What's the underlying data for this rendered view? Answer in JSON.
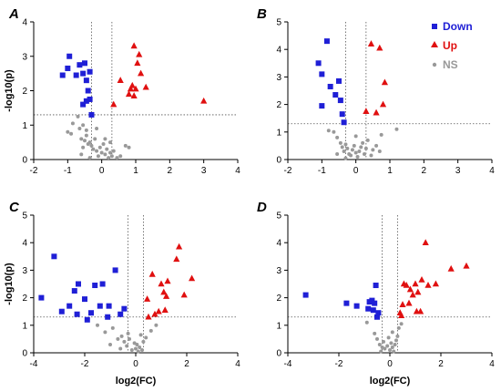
{
  "legend": [
    {
      "key": "down",
      "label": "Down",
      "color": "#1f1fd6",
      "shape": "square"
    },
    {
      "key": "up",
      "label": "Up",
      "color": "#e01010",
      "shape": "triangle"
    },
    {
      "key": "ns",
      "label": "NS",
      "color": "#999999",
      "shape": "circle"
    }
  ],
  "chart_data": [
    {
      "type": "scatter",
      "title": "A",
      "xlabel": "",
      "ylabel": "-log10(p)",
      "xlim": [
        -2,
        4
      ],
      "ylim": [
        0,
        4
      ],
      "xticks": [
        -2,
        -1,
        0,
        1,
        2,
        3,
        4
      ],
      "yticks": [
        0,
        1,
        2,
        3,
        4
      ],
      "vlines": [
        -0.3,
        0.3
      ],
      "hline": 1.3,
      "series": [
        {
          "key": "down",
          "points": [
            [
              -1.15,
              2.45
            ],
            [
              -0.95,
              3.0
            ],
            [
              -1.0,
              2.65
            ],
            [
              -0.75,
              2.45
            ],
            [
              -0.65,
              2.75
            ],
            [
              -0.55,
              2.5
            ],
            [
              -0.5,
              2.8
            ],
            [
              -0.45,
              2.3
            ],
            [
              -0.4,
              2.0
            ],
            [
              -0.35,
              2.55
            ],
            [
              -0.45,
              1.7
            ],
            [
              -0.35,
              1.75
            ],
            [
              -0.55,
              1.6
            ],
            [
              -0.3,
              1.3
            ]
          ]
        },
        {
          "key": "up",
          "points": [
            [
              0.35,
              1.6
            ],
            [
              0.55,
              2.3
            ],
            [
              0.8,
              1.9
            ],
            [
              0.85,
              2.05
            ],
            [
              0.9,
              2.15
            ],
            [
              0.95,
              1.85
            ],
            [
              1.0,
              2.05
            ],
            [
              0.95,
              3.3
            ],
            [
              1.05,
              2.8
            ],
            [
              1.15,
              2.5
            ],
            [
              1.3,
              2.1
            ],
            [
              1.1,
              3.05
            ],
            [
              3.0,
              1.7
            ]
          ]
        },
        {
          "key": "ns",
          "points": [
            [
              -1.0,
              0.8
            ],
            [
              -0.9,
              0.75
            ],
            [
              -0.85,
              1.05
            ],
            [
              -0.7,
              1.25
            ],
            [
              -0.65,
              0.9
            ],
            [
              -0.6,
              0.6
            ],
            [
              -0.55,
              0.35
            ],
            [
              -0.5,
              0.55
            ],
            [
              -0.45,
              0.7
            ],
            [
              -0.4,
              0.45
            ],
            [
              -0.35,
              0.5
            ],
            [
              -0.3,
              0.4
            ],
            [
              -0.25,
              0.3
            ],
            [
              -0.2,
              0.6
            ],
            [
              -0.15,
              0.25
            ],
            [
              -0.1,
              0.1
            ],
            [
              -0.05,
              0.35
            ],
            [
              0.0,
              0.2
            ],
            [
              0.05,
              0.45
            ],
            [
              0.1,
              0.15
            ],
            [
              0.15,
              0.3
            ],
            [
              0.2,
              0.05
            ],
            [
              0.25,
              0.2
            ],
            [
              0.3,
              0.1
            ],
            [
              0.35,
              0.25
            ],
            [
              0.45,
              0.05
            ],
            [
              0.55,
              0.1
            ],
            [
              0.7,
              0.4
            ],
            [
              0.8,
              0.35
            ],
            [
              -0.45,
              0.85
            ],
            [
              -0.55,
              1.0
            ],
            [
              -0.6,
              0.15
            ],
            [
              -0.35,
              0.05
            ],
            [
              -0.15,
              0.9
            ],
            [
              0.1,
              0.6
            ],
            [
              0.25,
              0.5
            ]
          ]
        }
      ]
    },
    {
      "type": "scatter",
      "title": "B",
      "xlabel": "",
      "ylabel": "",
      "xlim": [
        -2,
        4
      ],
      "ylim": [
        0,
        5
      ],
      "xticks": [
        -2,
        -1,
        0,
        1,
        2,
        3,
        4
      ],
      "yticks": [
        0,
        1,
        2,
        3,
        4,
        5
      ],
      "vlines": [
        -0.3,
        0.3
      ],
      "hline": 1.3,
      "series": [
        {
          "key": "down",
          "points": [
            [
              -1.1,
              3.5
            ],
            [
              -1.0,
              3.1
            ],
            [
              -0.85,
              4.3
            ],
            [
              -0.75,
              2.65
            ],
            [
              -0.6,
              2.35
            ],
            [
              -0.5,
              2.85
            ],
            [
              -0.45,
              2.15
            ],
            [
              -0.4,
              1.65
            ],
            [
              -0.35,
              1.35
            ],
            [
              -1.0,
              1.95
            ]
          ]
        },
        {
          "key": "up",
          "points": [
            [
              0.3,
              1.75
            ],
            [
              0.45,
              4.2
            ],
            [
              0.7,
              4.05
            ],
            [
              0.85,
              2.8
            ],
            [
              0.8,
              2.0
            ],
            [
              0.6,
              1.7
            ]
          ]
        },
        {
          "key": "ns",
          "points": [
            [
              -0.8,
              1.05
            ],
            [
              -0.65,
              1.0
            ],
            [
              -0.55,
              0.8
            ],
            [
              -0.45,
              0.6
            ],
            [
              -0.4,
              0.45
            ],
            [
              -0.35,
              0.3
            ],
            [
              -0.3,
              0.55
            ],
            [
              -0.25,
              0.4
            ],
            [
              -0.2,
              0.2
            ],
            [
              -0.15,
              0.15
            ],
            [
              -0.1,
              0.35
            ],
            [
              -0.05,
              0.5
            ],
            [
              0.0,
              0.25
            ],
            [
              0.05,
              0.1
            ],
            [
              0.1,
              0.3
            ],
            [
              0.15,
              0.45
            ],
            [
              0.2,
              0.6
            ],
            [
              0.25,
              0.2
            ],
            [
              0.3,
              0.4
            ],
            [
              0.35,
              0.7
            ],
            [
              0.5,
              0.35
            ],
            [
              0.6,
              0.5
            ],
            [
              0.7,
              0.3
            ],
            [
              0.75,
              0.9
            ],
            [
              1.2,
              1.1
            ],
            [
              -0.55,
              0.2
            ],
            [
              -0.3,
              0.05
            ],
            [
              0.0,
              0.85
            ],
            [
              0.45,
              0.15
            ]
          ]
        }
      ]
    },
    {
      "type": "scatter",
      "title": "C",
      "xlabel": "log2(FC)",
      "ylabel": "-log10(p)",
      "xlim": [
        -4,
        4
      ],
      "ylim": [
        0,
        5
      ],
      "xticks": [
        -4,
        -2,
        0,
        2,
        4
      ],
      "yticks": [
        0,
        1,
        2,
        3,
        4,
        5
      ],
      "vlines": [
        -0.3,
        0.3
      ],
      "hline": 1.3,
      "series": [
        {
          "key": "down",
          "points": [
            [
              -3.7,
              2.0
            ],
            [
              -3.2,
              3.5
            ],
            [
              -2.9,
              1.5
            ],
            [
              -2.6,
              1.7
            ],
            [
              -2.4,
              2.25
            ],
            [
              -2.3,
              1.4
            ],
            [
              -2.25,
              2.5
            ],
            [
              -2.0,
              1.95
            ],
            [
              -1.75,
              1.45
            ],
            [
              -1.6,
              2.45
            ],
            [
              -1.4,
              1.7
            ],
            [
              -1.3,
              2.5
            ],
            [
              -1.05,
              1.7
            ],
            [
              -0.8,
              3.0
            ],
            [
              -0.6,
              1.4
            ],
            [
              -0.45,
              1.6
            ],
            [
              -1.9,
              1.2
            ],
            [
              -1.1,
              1.3
            ]
          ]
        },
        {
          "key": "up",
          "points": [
            [
              0.5,
              1.3
            ],
            [
              0.65,
              2.85
            ],
            [
              0.75,
              1.4
            ],
            [
              0.9,
              1.5
            ],
            [
              1.0,
              2.5
            ],
            [
              1.1,
              2.2
            ],
            [
              1.2,
              2.05
            ],
            [
              1.25,
              2.6
            ],
            [
              1.15,
              1.55
            ],
            [
              1.6,
              3.4
            ],
            [
              1.7,
              3.85
            ],
            [
              1.9,
              2.1
            ],
            [
              2.2,
              2.7
            ],
            [
              0.45,
              1.95
            ]
          ]
        },
        {
          "key": "ns",
          "points": [
            [
              -1.5,
              1.0
            ],
            [
              -1.2,
              0.75
            ],
            [
              -0.9,
              0.9
            ],
            [
              -0.7,
              0.5
            ],
            [
              -0.55,
              0.6
            ],
            [
              -0.45,
              0.4
            ],
            [
              -0.35,
              0.25
            ],
            [
              -0.25,
              0.5
            ],
            [
              -0.15,
              0.1
            ],
            [
              -0.05,
              0.35
            ],
            [
              0.0,
              0.15
            ],
            [
              0.05,
              0.3
            ],
            [
              0.1,
              0.05
            ],
            [
              0.15,
              0.2
            ],
            [
              0.25,
              0.1
            ],
            [
              0.3,
              0.4
            ],
            [
              0.4,
              0.55
            ],
            [
              0.6,
              0.8
            ],
            [
              0.8,
              1.0
            ],
            [
              -1.0,
              0.3
            ],
            [
              -0.6,
              0.15
            ],
            [
              0.2,
              0.65
            ],
            [
              -0.3,
              0.7
            ]
          ]
        }
      ]
    },
    {
      "type": "scatter",
      "title": "D",
      "xlabel": "log2(FC)",
      "ylabel": "",
      "xlim": [
        -4,
        4
      ],
      "ylim": [
        0,
        5
      ],
      "xticks": [
        -4,
        -2,
        0,
        2,
        4
      ],
      "yticks": [
        0,
        1,
        2,
        3,
        4,
        5
      ],
      "vlines": [
        -0.3,
        0.3
      ],
      "hline": 1.3,
      "series": [
        {
          "key": "down",
          "points": [
            [
              -3.3,
              2.1
            ],
            [
              -1.7,
              1.8
            ],
            [
              -1.3,
              1.7
            ],
            [
              -0.85,
              1.6
            ],
            [
              -0.8,
              1.85
            ],
            [
              -0.7,
              1.9
            ],
            [
              -0.65,
              1.55
            ],
            [
              -0.6,
              1.8
            ],
            [
              -0.55,
              2.45
            ],
            [
              -0.5,
              1.3
            ],
            [
              -0.45,
              1.45
            ]
          ]
        },
        {
          "key": "up",
          "points": [
            [
              0.4,
              1.45
            ],
            [
              0.5,
              1.75
            ],
            [
              0.55,
              2.5
            ],
            [
              0.65,
              2.45
            ],
            [
              0.75,
              1.8
            ],
            [
              0.8,
              2.3
            ],
            [
              0.9,
              2.1
            ],
            [
              1.0,
              2.5
            ],
            [
              1.05,
              1.5
            ],
            [
              1.1,
              2.2
            ],
            [
              1.2,
              1.5
            ],
            [
              1.25,
              2.65
            ],
            [
              1.4,
              4.0
            ],
            [
              1.5,
              2.45
            ],
            [
              1.8,
              2.5
            ],
            [
              2.4,
              3.05
            ],
            [
              3.0,
              3.15
            ],
            [
              0.45,
              1.35
            ]
          ]
        },
        {
          "key": "ns",
          "points": [
            [
              -0.9,
              1.1
            ],
            [
              -0.6,
              0.7
            ],
            [
              -0.5,
              0.5
            ],
            [
              -0.4,
              0.3
            ],
            [
              -0.3,
              0.2
            ],
            [
              -0.2,
              0.15
            ],
            [
              -0.1,
              0.25
            ],
            [
              0.0,
              0.1
            ],
            [
              0.05,
              0.35
            ],
            [
              0.1,
              0.2
            ],
            [
              0.15,
              0.05
            ],
            [
              0.2,
              0.3
            ],
            [
              0.25,
              0.45
            ],
            [
              0.3,
              0.6
            ],
            [
              0.35,
              0.9
            ],
            [
              0.45,
              1.05
            ],
            [
              -0.25,
              0.4
            ],
            [
              -0.05,
              0.55
            ],
            [
              -0.35,
              0.05
            ],
            [
              0.1,
              0.75
            ]
          ]
        }
      ]
    }
  ]
}
